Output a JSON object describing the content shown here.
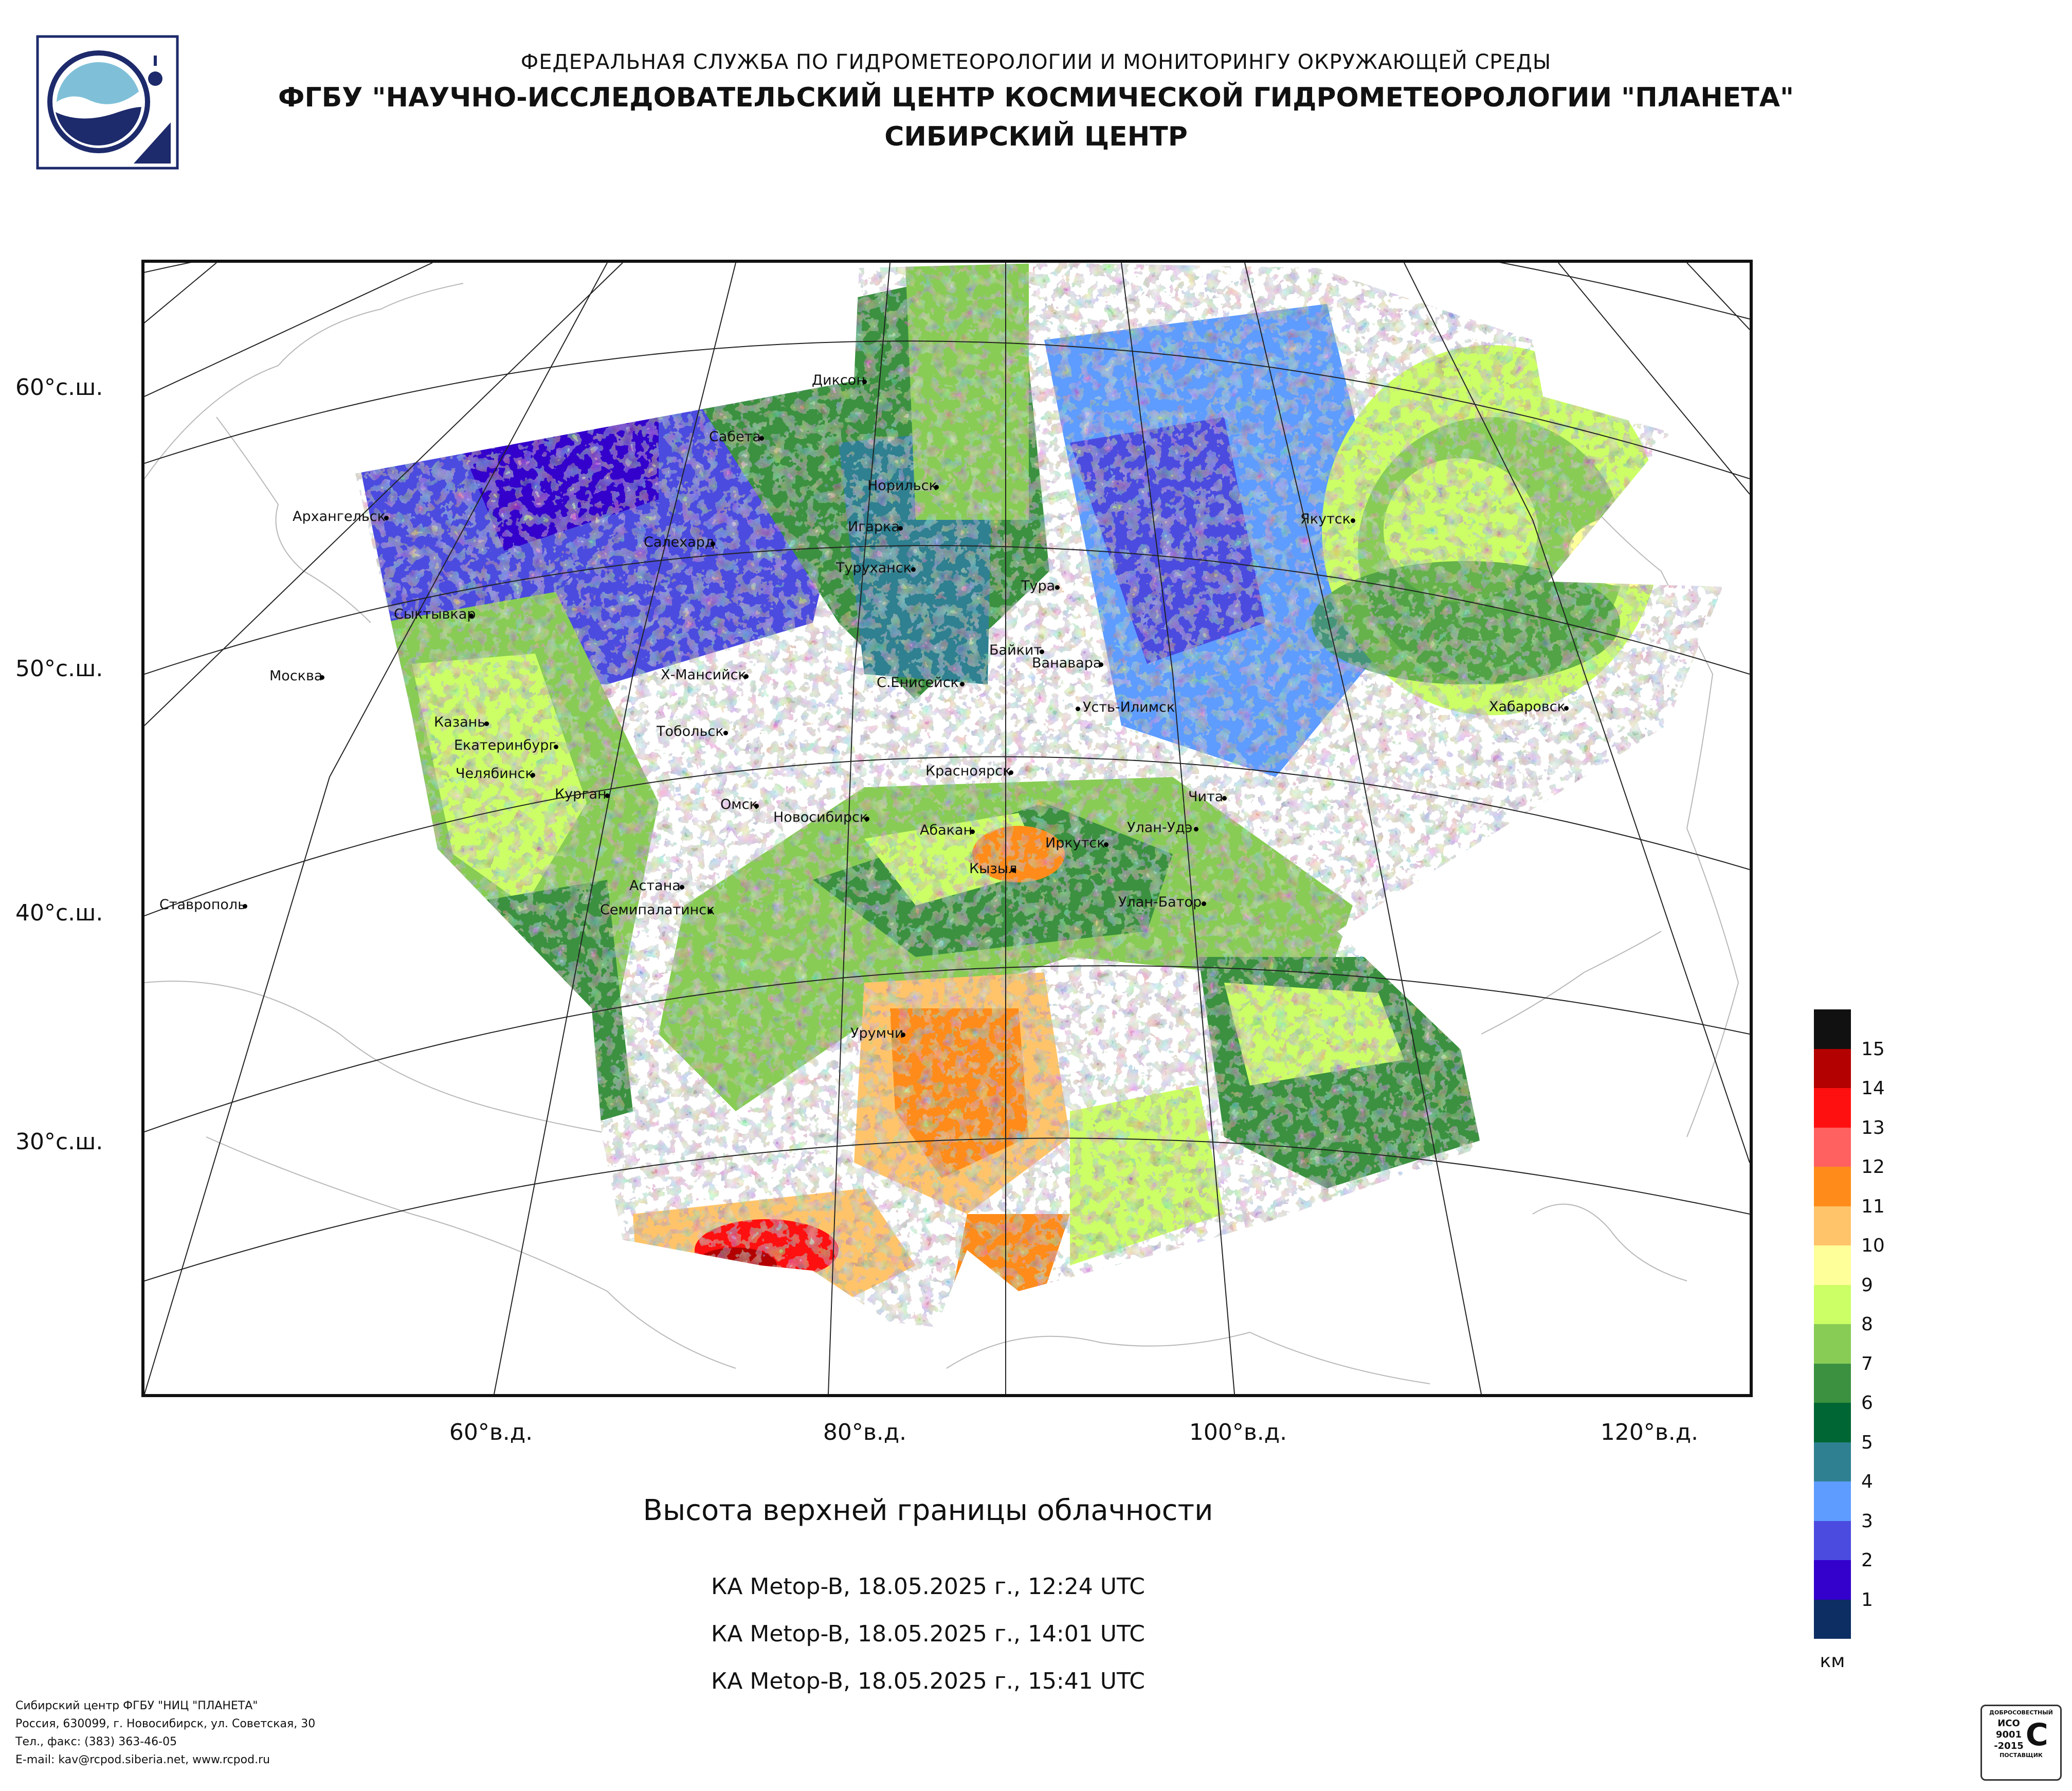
{
  "header": {
    "line1": "ФЕДЕРАЛЬНАЯ СЛУЖБА ПО ГИДРОМЕТЕОРОЛОГИИ И МОНИТОРИНГУ ОКРУЖАЮЩЕЙ СРЕДЫ",
    "line2": "ФГБУ \"НАУЧНО-ИССЛЕДОВАТЕЛЬСКИЙ ЦЕНТР КОСМИЧЕСКОЙ ГИДРОМЕТЕОРОЛОГИИ \"ПЛАНЕТА\"",
    "line3": "СИБИРСКИЙ ЦЕНТР"
  },
  "axes": {
    "lat_labels": [
      "60°с.ш.",
      "50°с.ш.",
      "40°с.ш.",
      "30°с.ш."
    ],
    "lon_labels": [
      "60°в.д.",
      "80°в.д.",
      "100°в.д.",
      "120°в.д."
    ]
  },
  "cities": [
    "Диксон",
    "Сабета",
    "Норильск",
    "Архангельск",
    "Игарка",
    "Якутск",
    "Салехард",
    "Туруханск",
    "Тура",
    "Сыктывкар",
    "Байкит",
    "Ванавара",
    "Москва",
    "Х-Мансийск",
    "С.Енисейск",
    "Усть-Илимск",
    "Хабаровск",
    "Казань",
    "Тобольск",
    "Екатеринбург",
    "Красноярск",
    "Челябинск",
    "Курган",
    "Омск",
    "Чита",
    "Новосибирск",
    "Абакан",
    "Улан-Удэ",
    "Иркутск",
    "Кызыл",
    "Астана",
    "Ставрополь",
    "Семипалатинск",
    "Улан-Батор",
    "Урумчи"
  ],
  "caption": "Высота верхней границы облачности",
  "passes": [
    "КА Metop-B, 18.05.2025 г., 12:24 UTC",
    "КА Metop-B, 18.05.2025 г., 14:01 UTC",
    "КА Metop-B, 18.05.2025 г., 15:41 UTC"
  ],
  "legend": {
    "unit": "км",
    "levels": [
      {
        "value": "15",
        "color": "#111111"
      },
      {
        "value": "14",
        "color": "#b30000"
      },
      {
        "value": "13",
        "color": "#ff1010"
      },
      {
        "value": "12",
        "color": "#ff6060"
      },
      {
        "value": "11",
        "color": "#ff8c1a"
      },
      {
        "value": "10",
        "color": "#ffc46a"
      },
      {
        "value": "9",
        "color": "#ffff99"
      },
      {
        "value": "8",
        "color": "#ccff66"
      },
      {
        "value": "7",
        "color": "#88cc55"
      },
      {
        "value": "6",
        "color": "#3b9140"
      },
      {
        "value": "5",
        "color": "#006633"
      },
      {
        "value": "4",
        "color": "#2f8090"
      },
      {
        "value": "3",
        "color": "#5e9cff"
      },
      {
        "value": "2",
        "color": "#4b4be0"
      },
      {
        "value": "1",
        "color": "#3300cc"
      },
      {
        "value": "",
        "color": "#0d2e63"
      }
    ]
  },
  "footer": {
    "line1": "Сибирский центр ФГБУ \"НИЦ \"ПЛАНЕТА\"",
    "line2": "Россия, 630099, г. Новосибирск, ул. Советская, 30",
    "line3": "Тел., факс: (383) 363-46-05",
    "line4": "E-mail: kav@rcpod.siberia.net, www.rcpod.ru"
  },
  "certificate": {
    "top": "ДОБРОСОВЕСТНЫЙ",
    "middle1": "ИСО",
    "middle2": "9001",
    "middle3": "-2015",
    "bottom": "ПОСТАВЩИК"
  }
}
